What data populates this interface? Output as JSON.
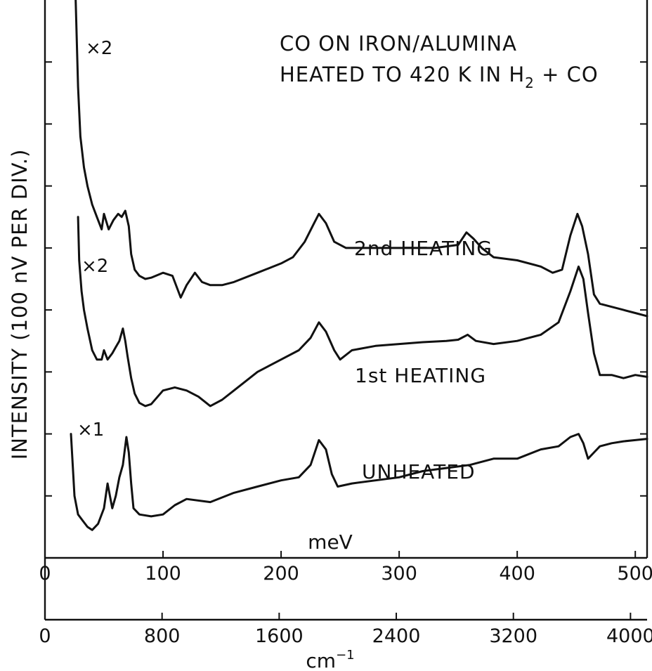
{
  "chart_data": {
    "type": "line",
    "title": "CO ON IRON/ALUMINA",
    "subtitle": "HEATED TO 420 K IN H2 + CO",
    "ylabel": "INTENSITY (100 nV PER DIV.)",
    "xlabel": "meV",
    "xlabel2": "cm⁻¹",
    "xlim": [
      0,
      510
    ],
    "x_ticks": [
      0,
      100,
      200,
      300,
      400,
      500
    ],
    "x_tick_labels": [
      "0",
      "100",
      "200",
      "300",
      "400",
      "500"
    ],
    "x2_ticks": [
      0,
      800,
      1600,
      2400,
      3200,
      4000
    ],
    "x2_tick_labels": [
      "0",
      "800",
      "1600",
      "2400",
      "3200",
      "4000"
    ],
    "ylim": [
      0,
      9
    ],
    "y_divisions": 9,
    "grid": false,
    "series": [
      {
        "name": "UNHEATED",
        "scale_label": "×1",
        "x": [
          22,
          25,
          28,
          32,
          36,
          40,
          45,
          50,
          53,
          57,
          60,
          63,
          66,
          69,
          71,
          73,
          75,
          80,
          90,
          100,
          110,
          120,
          140,
          160,
          180,
          200,
          215,
          225,
          232,
          238,
          243,
          248,
          260,
          280,
          300,
          320,
          340,
          360,
          380,
          400,
          420,
          435,
          445,
          452,
          456,
          460,
          465,
          470,
          480,
          490,
          500,
          510
        ],
        "y": [
          2.0,
          1.0,
          0.7,
          0.6,
          0.5,
          0.45,
          0.55,
          0.8,
          1.2,
          0.8,
          1.0,
          1.3,
          1.5,
          1.95,
          1.7,
          1.2,
          0.8,
          0.7,
          0.67,
          0.7,
          0.85,
          0.95,
          0.9,
          1.05,
          1.15,
          1.25,
          1.3,
          1.5,
          1.9,
          1.75,
          1.35,
          1.15,
          1.2,
          1.25,
          1.3,
          1.4,
          1.45,
          1.5,
          1.6,
          1.6,
          1.75,
          1.8,
          1.95,
          2.0,
          1.85,
          1.6,
          1.7,
          1.8,
          1.85,
          1.88,
          1.9,
          1.92
        ]
      },
      {
        "name": "1st HEATING",
        "scale_label": "×2",
        "x": [
          28,
          29,
          31,
          33,
          36,
          40,
          44,
          48,
          50,
          53,
          57,
          60,
          63,
          66,
          68,
          70,
          73,
          76,
          80,
          85,
          90,
          100,
          110,
          120,
          130,
          140,
          150,
          160,
          170,
          180,
          200,
          215,
          225,
          232,
          238,
          245,
          250,
          260,
          280,
          300,
          320,
          340,
          350,
          358,
          365,
          380,
          400,
          420,
          435,
          445,
          452,
          456,
          460,
          465,
          470,
          480,
          490,
          500,
          510
        ],
        "y": [
          5.5,
          4.8,
          4.3,
          4.0,
          3.7,
          3.35,
          3.2,
          3.2,
          3.35,
          3.2,
          3.3,
          3.4,
          3.5,
          3.7,
          3.5,
          3.25,
          2.9,
          2.65,
          2.5,
          2.45,
          2.48,
          2.7,
          2.75,
          2.7,
          2.6,
          2.45,
          2.55,
          2.7,
          2.85,
          3.0,
          3.2,
          3.35,
          3.55,
          3.8,
          3.65,
          3.35,
          3.2,
          3.35,
          3.42,
          3.45,
          3.48,
          3.5,
          3.52,
          3.6,
          3.5,
          3.45,
          3.5,
          3.6,
          3.8,
          4.3,
          4.7,
          4.5,
          3.95,
          3.3,
          2.95,
          2.95,
          2.9,
          2.95,
          2.92
        ]
      },
      {
        "name": "2nd HEATING",
        "scale_label": "×2",
        "x": [
          26,
          28,
          30,
          33,
          36,
          40,
          44,
          48,
          50,
          54,
          58,
          62,
          65,
          68,
          71,
          73,
          76,
          80,
          85,
          90,
          100,
          108,
          115,
          120,
          127,
          133,
          140,
          150,
          160,
          180,
          200,
          210,
          220,
          228,
          232,
          238,
          245,
          255,
          270,
          300,
          330,
          350,
          357,
          363,
          370,
          380,
          400,
          420,
          430,
          438,
          445,
          451,
          455,
          460,
          465,
          470,
          480,
          490,
          500,
          510
        ],
        "y": [
          9.0,
          7.6,
          6.8,
          6.3,
          6.0,
          5.7,
          5.5,
          5.3,
          5.55,
          5.3,
          5.45,
          5.55,
          5.5,
          5.6,
          5.35,
          4.9,
          4.65,
          4.55,
          4.5,
          4.52,
          4.6,
          4.55,
          4.2,
          4.4,
          4.6,
          4.45,
          4.4,
          4.4,
          4.45,
          4.6,
          4.75,
          4.85,
          5.1,
          5.4,
          5.55,
          5.4,
          5.1,
          5.0,
          5.0,
          5.0,
          5.0,
          5.05,
          5.25,
          5.15,
          5.0,
          4.85,
          4.8,
          4.7,
          4.6,
          4.65,
          5.2,
          5.55,
          5.35,
          4.9,
          4.25,
          4.1,
          4.05,
          4.0,
          3.95,
          3.9
        ]
      }
    ]
  }
}
